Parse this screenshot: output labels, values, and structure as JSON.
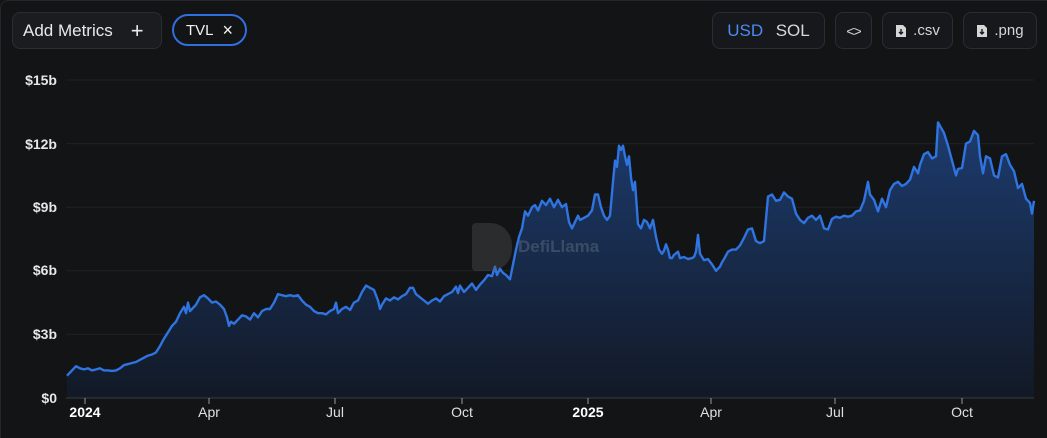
{
  "toolbar": {
    "add_metrics_label": "Add Metrics",
    "add_metrics_icon": "plus-icon",
    "active_metric_chip": "TVL",
    "chip_remove_icon": "close-icon",
    "currency_options": [
      "USD",
      "SOL"
    ],
    "currency_selected": "USD",
    "embed_label": "<>",
    "embed_icon": "code-icon",
    "csv_label": ".csv",
    "png_label": ".png",
    "download_icon": "file-download-icon"
  },
  "colors": {
    "background": "#131416",
    "line": "#2f74e0",
    "accent": "#4a8af4",
    "area_top": "#1d3e74",
    "area_bottom": "#121a28"
  },
  "watermark": "DefiLlama",
  "chart_data": {
    "type": "area",
    "title": "",
    "xlabel": "",
    "ylabel": "",
    "series_name": "TVL",
    "currency": "USD",
    "y_ticks": [
      "$0",
      "$3b",
      "$6b",
      "$9b",
      "$12b",
      "$15b"
    ],
    "y_tick_values": [
      0,
      3,
      6,
      9,
      12,
      15
    ],
    "ylim": [
      0,
      15
    ],
    "x_ticks": [
      {
        "label": "2024",
        "bold": true,
        "px": 85
      },
      {
        "label": "Apr",
        "bold": false,
        "px": 209
      },
      {
        "label": "Jul",
        "bold": false,
        "px": 335
      },
      {
        "label": "Oct",
        "bold": false,
        "px": 462
      },
      {
        "label": "2025",
        "bold": true,
        "px": 588
      },
      {
        "label": "Apr",
        "bold": false,
        "px": 711
      },
      {
        "label": "Jul",
        "bold": false,
        "px": 835
      },
      {
        "label": "Oct",
        "bold": false,
        "px": 962
      }
    ],
    "x_range": [
      "2023-12-17",
      "2025-11-08"
    ],
    "grid": "horizontal",
    "legend": "none",
    "unit": "billion USD",
    "points": [
      [
        67,
        1.05
      ],
      [
        72,
        1.3
      ],
      [
        76,
        1.5
      ],
      [
        80,
        1.4
      ],
      [
        84,
        1.35
      ],
      [
        88,
        1.4
      ],
      [
        92,
        1.3
      ],
      [
        96,
        1.35
      ],
      [
        100,
        1.4
      ],
      [
        104,
        1.3
      ],
      [
        108,
        1.3
      ],
      [
        112,
        1.28
      ],
      [
        116,
        1.3
      ],
      [
        120,
        1.4
      ],
      [
        124,
        1.55
      ],
      [
        128,
        1.6
      ],
      [
        132,
        1.65
      ],
      [
        136,
        1.7
      ],
      [
        140,
        1.8
      ],
      [
        144,
        1.9
      ],
      [
        148,
        2.0
      ],
      [
        152,
        2.05
      ],
      [
        156,
        2.15
      ],
      [
        160,
        2.45
      ],
      [
        164,
        2.8
      ],
      [
        168,
        3.1
      ],
      [
        172,
        3.4
      ],
      [
        176,
        3.6
      ],
      [
        180,
        4.0
      ],
      [
        184,
        4.3
      ],
      [
        186,
        4.0
      ],
      [
        188,
        4.5
      ],
      [
        190,
        4.1
      ],
      [
        192,
        4.2
      ],
      [
        196,
        4.4
      ],
      [
        200,
        4.75
      ],
      [
        204,
        4.85
      ],
      [
        208,
        4.7
      ],
      [
        212,
        4.5
      ],
      [
        216,
        4.55
      ],
      [
        220,
        4.4
      ],
      [
        224,
        4.2
      ],
      [
        227,
        3.8
      ],
      [
        229,
        3.4
      ],
      [
        231,
        3.6
      ],
      [
        234,
        3.5
      ],
      [
        238,
        3.7
      ],
      [
        242,
        3.9
      ],
      [
        246,
        3.85
      ],
      [
        250,
        3.7
      ],
      [
        254,
        4.0
      ],
      [
        258,
        3.8
      ],
      [
        262,
        4.1
      ],
      [
        266,
        4.2
      ],
      [
        270,
        4.2
      ],
      [
        274,
        4.5
      ],
      [
        278,
        4.9
      ],
      [
        282,
        4.85
      ],
      [
        286,
        4.8
      ],
      [
        290,
        4.85
      ],
      [
        294,
        4.8
      ],
      [
        298,
        4.85
      ],
      [
        302,
        4.6
      ],
      [
        306,
        4.4
      ],
      [
        310,
        4.3
      ],
      [
        314,
        4.1
      ],
      [
        318,
        4.0
      ],
      [
        322,
        4.0
      ],
      [
        326,
        3.95
      ],
      [
        330,
        4.1
      ],
      [
        334,
        4.2
      ],
      [
        336,
        4.5
      ],
      [
        338,
        4.0
      ],
      [
        342,
        4.2
      ],
      [
        346,
        4.3
      ],
      [
        350,
        4.15
      ],
      [
        354,
        4.5
      ],
      [
        358,
        4.6
      ],
      [
        362,
        5.0
      ],
      [
        366,
        5.3
      ],
      [
        370,
        5.2
      ],
      [
        374,
        5.1
      ],
      [
        378,
        4.6
      ],
      [
        380,
        4.2
      ],
      [
        382,
        4.4
      ],
      [
        386,
        4.7
      ],
      [
        390,
        4.6
      ],
      [
        394,
        4.75
      ],
      [
        398,
        4.65
      ],
      [
        402,
        4.8
      ],
      [
        406,
        4.9
      ],
      [
        410,
        5.2
      ],
      [
        413,
        5.2
      ],
      [
        416,
        4.9
      ],
      [
        420,
        4.75
      ],
      [
        424,
        4.6
      ],
      [
        428,
        4.45
      ],
      [
        432,
        4.6
      ],
      [
        436,
        4.7
      ],
      [
        440,
        4.55
      ],
      [
        444,
        4.8
      ],
      [
        448,
        4.9
      ],
      [
        452,
        5.0
      ],
      [
        456,
        5.25
      ],
      [
        458,
        4.95
      ],
      [
        460,
        5.3
      ],
      [
        464,
        5.0
      ],
      [
        468,
        5.2
      ],
      [
        472,
        5.4
      ],
      [
        476,
        5.1
      ],
      [
        480,
        5.35
      ],
      [
        484,
        5.55
      ],
      [
        488,
        5.8
      ],
      [
        492,
        5.75
      ],
      [
        495,
        6.2
      ],
      [
        497,
        5.8
      ],
      [
        500,
        6.1
      ],
      [
        503,
        5.9
      ],
      [
        506,
        5.8
      ],
      [
        510,
        5.6
      ],
      [
        513,
        6.3
      ],
      [
        516,
        7.0
      ],
      [
        519,
        7.6
      ],
      [
        522,
        8.0
      ],
      [
        525,
        8.8
      ],
      [
        528,
        8.6
      ],
      [
        532,
        9.0
      ],
      [
        535,
        9.1
      ],
      [
        538,
        8.85
      ],
      [
        542,
        9.3
      ],
      [
        546,
        9.1
      ],
      [
        550,
        9.4
      ],
      [
        554,
        9.0
      ],
      [
        558,
        9.35
      ],
      [
        562,
        9.0
      ],
      [
        566,
        9.15
      ],
      [
        569,
        8.3
      ],
      [
        572,
        8.0
      ],
      [
        575,
        8.3
      ],
      [
        578,
        8.6
      ],
      [
        580,
        8.4
      ],
      [
        584,
        8.5
      ],
      [
        588,
        8.6
      ],
      [
        592,
        8.85
      ],
      [
        595,
        9.6
      ],
      [
        598,
        9.6
      ],
      [
        601,
        9.0
      ],
      [
        604,
        8.6
      ],
      [
        607,
        8.4
      ],
      [
        610,
        8.6
      ],
      [
        613,
        10.2
      ],
      [
        615,
        11.2
      ],
      [
        617,
        10.9
      ],
      [
        619,
        11.9
      ],
      [
        621,
        11.7
      ],
      [
        623,
        11.9
      ],
      [
        625,
        11.4
      ],
      [
        627,
        11.0
      ],
      [
        629,
        11.4
      ],
      [
        631,
        10.4
      ],
      [
        633,
        9.8
      ],
      [
        635,
        10.2
      ],
      [
        638,
        8.2
      ],
      [
        641,
        8.0
      ],
      [
        644,
        8.4
      ],
      [
        647,
        8.3
      ],
      [
        650,
        8.0
      ],
      [
        653,
        8.4
      ],
      [
        656,
        7.6
      ],
      [
        659,
        7.0
      ],
      [
        662,
        6.8
      ],
      [
        664,
        6.95
      ],
      [
        666,
        7.25
      ],
      [
        668,
        7.0
      ],
      [
        670,
        6.6
      ],
      [
        672,
        6.6
      ],
      [
        674,
        6.75
      ],
      [
        678,
        6.9
      ],
      [
        680,
        6.6
      ],
      [
        684,
        6.65
      ],
      [
        688,
        6.55
      ],
      [
        692,
        6.6
      ],
      [
        694,
        6.65
      ],
      [
        696,
        6.9
      ],
      [
        698,
        7.7
      ],
      [
        700,
        6.8
      ],
      [
        704,
        6.5
      ],
      [
        708,
        6.55
      ],
      [
        712,
        6.3
      ],
      [
        716,
        6.0
      ],
      [
        720,
        6.2
      ],
      [
        722,
        6.4
      ],
      [
        724,
        6.55
      ],
      [
        728,
        6.9
      ],
      [
        732,
        7.0
      ],
      [
        736,
        7.0
      ],
      [
        740,
        7.2
      ],
      [
        744,
        7.55
      ],
      [
        748,
        7.95
      ],
      [
        752,
        8.0
      ],
      [
        756,
        7.4
      ],
      [
        760,
        7.3
      ],
      [
        764,
        7.4
      ],
      [
        768,
        9.5
      ],
      [
        772,
        9.6
      ],
      [
        776,
        9.3
      ],
      [
        780,
        9.35
      ],
      [
        784,
        9.7
      ],
      [
        788,
        9.5
      ],
      [
        792,
        9.4
      ],
      [
        796,
        8.7
      ],
      [
        800,
        8.4
      ],
      [
        804,
        8.25
      ],
      [
        808,
        8.5
      ],
      [
        812,
        8.6
      ],
      [
        816,
        8.4
      ],
      [
        820,
        8.6
      ],
      [
        824,
        8.0
      ],
      [
        828,
        7.95
      ],
      [
        832,
        8.45
      ],
      [
        836,
        8.55
      ],
      [
        840,
        8.5
      ],
      [
        844,
        8.6
      ],
      [
        848,
        8.55
      ],
      [
        852,
        8.6
      ],
      [
        856,
        8.8
      ],
      [
        860,
        8.85
      ],
      [
        864,
        9.3
      ],
      [
        868,
        10.2
      ],
      [
        870,
        9.6
      ],
      [
        874,
        9.35
      ],
      [
        878,
        8.8
      ],
      [
        882,
        9.4
      ],
      [
        886,
        9.0
      ],
      [
        890,
        9.8
      ],
      [
        894,
        10.1
      ],
      [
        898,
        10.2
      ],
      [
        902,
        10.0
      ],
      [
        906,
        10.1
      ],
      [
        910,
        10.3
      ],
      [
        914,
        10.9
      ],
      [
        918,
        10.6
      ],
      [
        920,
        11.0
      ],
      [
        924,
        11.5
      ],
      [
        928,
        11.6
      ],
      [
        932,
        11.3
      ],
      [
        936,
        11.4
      ],
      [
        938,
        13.0
      ],
      [
        941,
        12.75
      ],
      [
        944,
        12.5
      ],
      [
        948,
        11.9
      ],
      [
        952,
        11.2
      ],
      [
        956,
        10.5
      ],
      [
        958,
        10.8
      ],
      [
        962,
        10.85
      ],
      [
        966,
        12.0
      ],
      [
        970,
        12.1
      ],
      [
        974,
        12.6
      ],
      [
        978,
        12.4
      ],
      [
        980,
        11.4
      ],
      [
        983,
        10.6
      ],
      [
        986,
        11.4
      ],
      [
        990,
        11.3
      ],
      [
        994,
        10.5
      ],
      [
        998,
        10.4
      ],
      [
        1002,
        11.4
      ],
      [
        1006,
        11.5
      ],
      [
        1010,
        11.0
      ],
      [
        1014,
        10.7
      ],
      [
        1018,
        9.9
      ],
      [
        1022,
        10.1
      ],
      [
        1026,
        9.4
      ],
      [
        1030,
        9.2
      ],
      [
        1032,
        8.7
      ],
      [
        1034,
        9.3
      ]
    ]
  }
}
